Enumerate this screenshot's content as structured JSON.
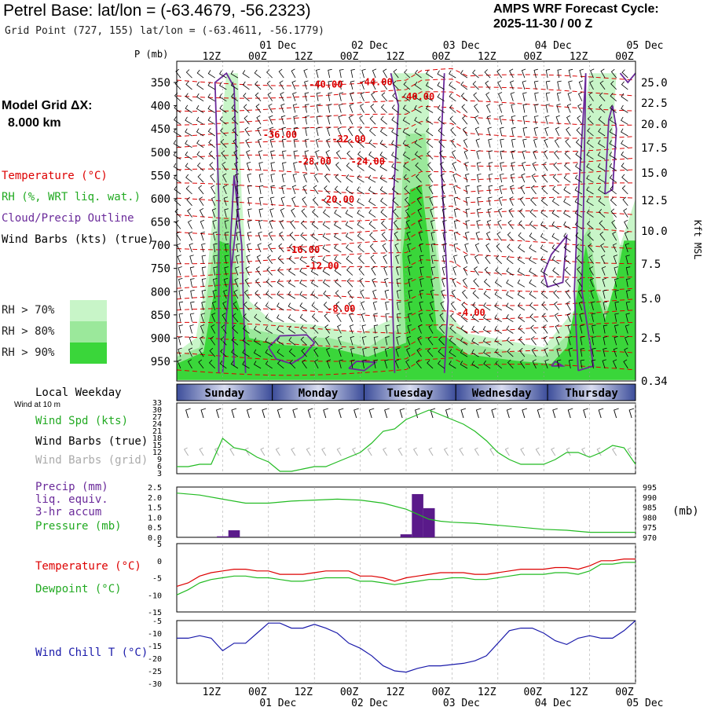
{
  "header": {
    "title": "Petrel Base:  lat/lon = (-63.4679, -56.2323)",
    "grid_point": "Grid Point (727, 155) lat/lon = (-63.4611, -56.1779)",
    "cycle_label": "AMPS WRF Forecast Cycle:",
    "cycle_value": "2025-11-30 / 00  Z",
    "model_grid_label": "Model Grid ΔX:",
    "model_grid_value": "8.000 km"
  },
  "legend": {
    "temperature": "Temperature (°C)",
    "rh": "RH (%, WRT liq. wat.)",
    "cloud": "Cloud/Precip Outline",
    "wind_barbs": "Wind Barbs (kts) (true)",
    "rh70": "RH > 70%",
    "rh80": "RH > 80%",
    "rh90": "RH > 90%",
    "local_weekday": "Local Weekday",
    "wind_at_10m": "Wind at 10 m",
    "wind_spd": "Wind Spd (kts)",
    "wind_barbs_true": "Wind Barbs (true)",
    "wind_barbs_grid": "Wind Barbs (grid)",
    "precip": "Precip (mm)",
    "liq_equiv": "liq. equiv.",
    "accum": "3-hr accum",
    "pressure": "Pressure (mb)",
    "pressure_unit": "(mb)",
    "temperature2": "Temperature (°C)",
    "dewpoint": "Dewpoint (°C)",
    "wind_chill": "Wind Chill T (°C)",
    "p_axis": "P (mb)",
    "kft_axis": "Kft MSL"
  },
  "colors": {
    "rh70": "#c8f5c8",
    "rh80": "#9be89b",
    "rh90": "#3ad63a",
    "temperature": "#dd0000",
    "dewpoint": "#22bb22",
    "cloud": "#6a2a9a",
    "wind_chill": "#1a1aaa",
    "wind_speed": "#22bb22",
    "precip_bar": "#5a1a8a",
    "pressure": "#22bb22"
  },
  "chart_data": [
    {
      "type": "time-height cross-section",
      "id": "cross_section",
      "x_range_hours": [
        0,
        120
      ],
      "pressure_ticks_mb": [
        350,
        400,
        450,
        500,
        550,
        600,
        650,
        700,
        750,
        800,
        850,
        900,
        950
      ],
      "height_ticks_kft": [
        "25.0",
        "22.5",
        "20.0",
        "17.5",
        "15.0",
        "12.5",
        "10.0",
        "7.5",
        "5.0",
        "2.5",
        "0.34"
      ],
      "top_time_labels": [
        {
          "hour": 12,
          "label": "12Z"
        },
        {
          "hour": 24,
          "label": "00Z"
        },
        {
          "hour": 36,
          "label": "12Z"
        },
        {
          "hour": 48,
          "label": "00Z"
        },
        {
          "hour": 60,
          "label": "12Z"
        },
        {
          "hour": 72,
          "label": "00Z"
        },
        {
          "hour": 84,
          "label": "12Z"
        },
        {
          "hour": 96,
          "label": "00Z"
        },
        {
          "hour": 108,
          "label": "12Z"
        },
        {
          "hour": 120,
          "label": "00Z"
        }
      ],
      "date_labels": [
        {
          "hour": 24,
          "label": "01 Dec"
        },
        {
          "hour": 48,
          "label": "02 Dec"
        },
        {
          "hour": 72,
          "label": "03 Dec"
        },
        {
          "hour": 96,
          "label": "04 Dec"
        },
        {
          "hour": 120,
          "label": "05 Dec"
        }
      ],
      "isotherm_labels": [
        {
          "label": "-40.00",
          "hour": 39,
          "p": 354
        },
        {
          "label": "-44.00",
          "hour": 52,
          "p": 349
        },
        {
          "label": "-40.00",
          "hour": 63,
          "p": 380
        },
        {
          "label": "-36.00",
          "hour": 27,
          "p": 462
        },
        {
          "label": "-32.00",
          "hour": 45,
          "p": 472
        },
        {
          "label": "-28.00",
          "hour": 36,
          "p": 520
        },
        {
          "label": "-24.00",
          "hour": 50,
          "p": 520
        },
        {
          "label": "-20.00",
          "hour": 42,
          "p": 602
        },
        {
          "label": "-16.00",
          "hour": 33,
          "p": 710
        },
        {
          "label": "-12.00",
          "hour": 38,
          "p": 745
        },
        {
          "label": "-8.00",
          "hour": 43,
          "p": 837
        },
        {
          "label": "-4.00",
          "hour": 77,
          "p": 845
        }
      ]
    },
    {
      "type": "weekday-band",
      "id": "weekday",
      "days": [
        {
          "label": "Sunday",
          "start": 0,
          "end": 25
        },
        {
          "label": "Monday",
          "start": 25,
          "end": 49
        },
        {
          "label": "Tuesday",
          "start": 49,
          "end": 73
        },
        {
          "label": "Wednesday",
          "start": 73,
          "end": 97
        },
        {
          "label": "Thursday",
          "start": 97,
          "end": 120
        }
      ]
    },
    {
      "type": "line",
      "id": "wind_speed",
      "title": "Wind Spd (kts)",
      "ylim": [
        3,
        33
      ],
      "y_ticks": [
        3,
        6,
        9,
        12,
        15,
        18,
        21,
        24,
        27,
        30,
        33
      ],
      "x": [
        0,
        3,
        6,
        9,
        12,
        15,
        18,
        21,
        24,
        27,
        30,
        33,
        36,
        39,
        42,
        45,
        48,
        51,
        54,
        57,
        60,
        63,
        66,
        69,
        72,
        75,
        78,
        81,
        84,
        87,
        90,
        93,
        96,
        99,
        102,
        105,
        108,
        111,
        114,
        117,
        120
      ],
      "values": [
        6,
        6,
        7,
        7,
        18,
        14,
        13,
        10,
        8,
        4,
        4,
        5,
        6,
        6,
        8,
        10,
        12,
        16,
        21,
        22,
        26,
        28,
        30,
        28,
        26,
        24,
        21,
        17,
        12,
        9,
        7,
        7,
        7,
        9,
        12,
        12,
        10,
        12,
        15,
        14,
        7
      ]
    },
    {
      "type": "bar+line",
      "id": "precip_pressure",
      "precip_title": "Precip (mm) 3-hr accum",
      "precip_ylim": [
        0,
        2.5
      ],
      "precip_ticks": [
        "0.0",
        "0.5",
        "1.0",
        "1.5",
        "2.0",
        "2.5"
      ],
      "precip_bars": [
        {
          "hour": 12,
          "value": 0.05
        },
        {
          "hour": 15,
          "value": 0.35
        },
        {
          "hour": 60,
          "value": 0.15
        },
        {
          "hour": 63,
          "value": 2.15
        },
        {
          "hour": 66,
          "value": 1.45
        }
      ],
      "pressure_ylim": [
        970,
        995
      ],
      "pressure_ticks": [
        970,
        975,
        980,
        985,
        990,
        995
      ],
      "pressure_x": [
        0,
        6,
        12,
        18,
        24,
        30,
        36,
        42,
        48,
        54,
        60,
        63,
        66,
        69,
        72,
        78,
        84,
        90,
        96,
        102,
        108,
        114,
        120
      ],
      "pressure_values": [
        992,
        991,
        989,
        987,
        987,
        988,
        988.5,
        989,
        988.5,
        987,
        984,
        981.5,
        979,
        978,
        977.5,
        977,
        976,
        975,
        974,
        973.5,
        972.5,
        972.5,
        972.5
      ]
    },
    {
      "type": "line",
      "id": "temp_dewpoint",
      "ylim": [
        -15,
        5
      ],
      "y_ticks": [
        -15,
        -10,
        -5,
        0,
        5
      ],
      "x": [
        0,
        3,
        6,
        9,
        12,
        15,
        18,
        21,
        24,
        27,
        30,
        33,
        36,
        39,
        42,
        45,
        48,
        51,
        54,
        57,
        60,
        63,
        66,
        69,
        72,
        75,
        78,
        81,
        84,
        87,
        90,
        93,
        96,
        99,
        102,
        105,
        108,
        111,
        114,
        117,
        120
      ],
      "series": [
        {
          "name": "Temperature (°C)",
          "values": [
            -7.5,
            -6.5,
            -4.5,
            -3.5,
            -3,
            -2.5,
            -2.5,
            -3,
            -3,
            -4,
            -4,
            -4,
            -3.5,
            -3,
            -3,
            -3,
            -4.5,
            -4.5,
            -5,
            -6,
            -5,
            -4.5,
            -4,
            -3.5,
            -3.5,
            -3.5,
            -4,
            -4,
            -3.5,
            -3,
            -2.5,
            -2.5,
            -2.5,
            -2,
            -2,
            -2.5,
            -1.5,
            0,
            0,
            0.5,
            0.5
          ]
        },
        {
          "name": "Dewpoint (°C)",
          "values": [
            -10,
            -8.5,
            -6.5,
            -5.5,
            -5,
            -4.5,
            -4.5,
            -5,
            -5,
            -5.5,
            -6,
            -6,
            -5.5,
            -5,
            -5,
            -5,
            -6,
            -6,
            -6.5,
            -7,
            -6.5,
            -6,
            -5.5,
            -5.5,
            -5,
            -5,
            -5.5,
            -5.5,
            -5,
            -4.5,
            -4,
            -4,
            -4,
            -3.5,
            -3.5,
            -4,
            -3,
            -1,
            -1,
            -0.5,
            -0.5
          ]
        }
      ]
    },
    {
      "type": "line",
      "id": "wind_chill",
      "title": "Wind Chill T (°C)",
      "ylim": [
        -30,
        -5
      ],
      "y_ticks": [
        -30,
        -25,
        -20,
        -15,
        -10,
        -5
      ],
      "x": [
        0,
        3,
        6,
        9,
        12,
        15,
        18,
        21,
        24,
        27,
        30,
        33,
        36,
        39,
        42,
        45,
        48,
        51,
        54,
        57,
        60,
        63,
        66,
        69,
        72,
        75,
        78,
        81,
        84,
        87,
        90,
        93,
        96,
        99,
        102,
        105,
        108,
        111,
        114,
        117,
        120
      ],
      "values": [
        -12,
        -12,
        -11,
        -12,
        -17,
        -14,
        -14,
        -10,
        -6,
        -6,
        -8,
        -8,
        -6.5,
        -8,
        -10,
        -14,
        -16,
        -19,
        -23,
        -25,
        -25.5,
        -24,
        -23,
        -23,
        -22.5,
        -22,
        -21,
        -19,
        -14,
        -9,
        -8,
        -8,
        -10,
        -13,
        -14.5,
        -12,
        -11,
        -12,
        -12,
        -9,
        -5
      ]
    }
  ]
}
